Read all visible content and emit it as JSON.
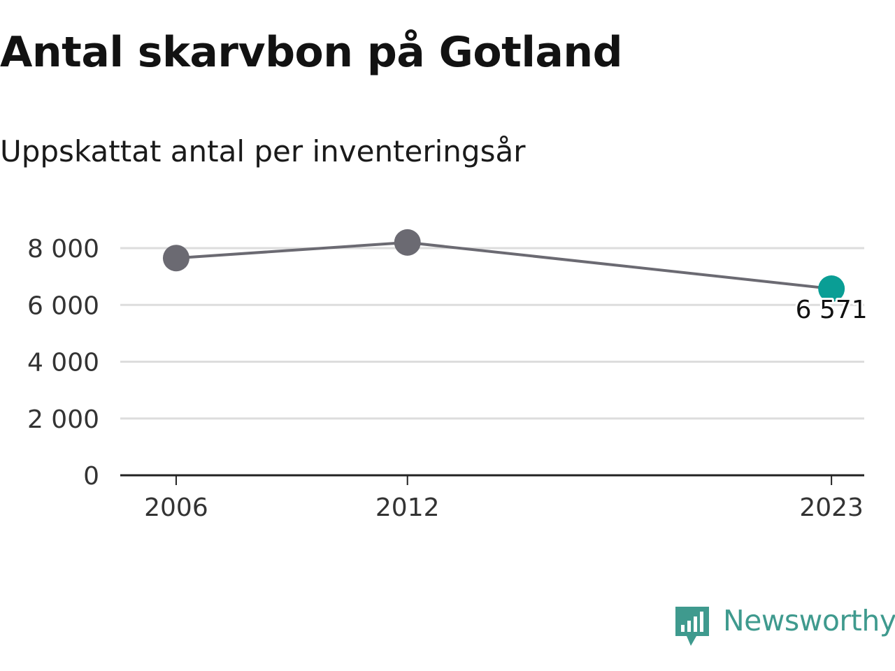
{
  "title": "Antal skarvbon på Gotland",
  "subtitle": "Uppskattat antal per inventeringsår",
  "brand": {
    "name": "Newsworthy",
    "color": "#3f9a8e",
    "icon": "bar-chart-speech-bubble-icon"
  },
  "colors": {
    "line": "#6b6a72",
    "point": "#6b6a72",
    "highlight": "#0a9e95",
    "grid": "#dddddd",
    "axis": "#222222"
  },
  "chart_data": {
    "type": "line",
    "title": "Antal skarvbon på Gotland",
    "subtitle": "Uppskattat antal per inventeringsår",
    "xlabel": "",
    "ylabel": "",
    "x": [
      2006,
      2012,
      2023
    ],
    "x_tick_labels": [
      "2006",
      "2012",
      "2023"
    ],
    "series": [
      {
        "values": [
          7650,
          8200,
          6571
        ]
      }
    ],
    "ylim": [
      0,
      8000
    ],
    "y_ticks": [
      0,
      2000,
      4000,
      6000,
      8000
    ],
    "y_tick_labels": [
      "0",
      "2 000",
      "4 000",
      "6 000",
      "8 000"
    ],
    "highlighted_point": {
      "index": 2,
      "label": "6 571"
    },
    "grid": true,
    "legend": "none"
  }
}
